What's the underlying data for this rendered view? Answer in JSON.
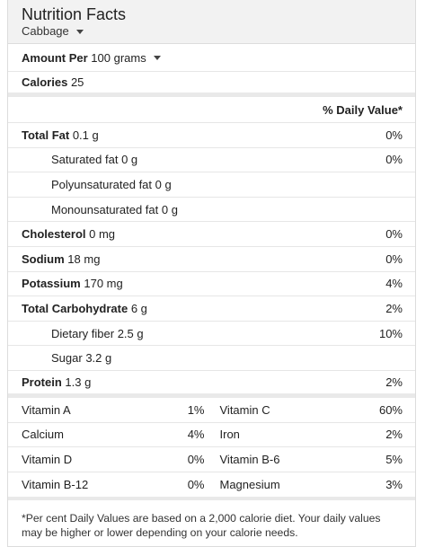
{
  "header": {
    "title": "Nutrition Facts",
    "food": "Cabbage"
  },
  "serving": {
    "amount_label": "Amount Per",
    "amount_value": "100 grams"
  },
  "calories": {
    "label": "Calories",
    "value": "25"
  },
  "dv_header": "% Daily Value*",
  "nutrients": [
    {
      "label": "Total Fat",
      "amount": "0.1 g",
      "dv": "0%"
    },
    {
      "label": "Saturated fat",
      "amount": "0 g",
      "dv": "0%"
    },
    {
      "label": "Polyunsaturated fat",
      "amount": "0 g",
      "dv": ""
    },
    {
      "label": "Monounsaturated fat",
      "amount": "0 g",
      "dv": ""
    },
    {
      "label": "Cholesterol",
      "amount": "0 mg",
      "dv": "0%"
    },
    {
      "label": "Sodium",
      "amount": "18 mg",
      "dv": "0%"
    },
    {
      "label": "Potassium",
      "amount": "170 mg",
      "dv": "4%"
    },
    {
      "label": "Total Carbohydrate",
      "amount": "6 g",
      "dv": "2%"
    },
    {
      "label": "Dietary fiber",
      "amount": "2.5 g",
      "dv": "10%"
    },
    {
      "label": "Sugar",
      "amount": "3.2 g",
      "dv": ""
    },
    {
      "label": "Protein",
      "amount": "1.3 g",
      "dv": "2%"
    }
  ],
  "vitamins": [
    {
      "left_name": "Vitamin A",
      "left_pct": "1%",
      "right_name": "Vitamin C",
      "right_pct": "60%"
    },
    {
      "left_name": "Calcium",
      "left_pct": "4%",
      "right_name": "Iron",
      "right_pct": "2%"
    },
    {
      "left_name": "Vitamin D",
      "left_pct": "0%",
      "right_name": "Vitamin B-6",
      "right_pct": "5%"
    },
    {
      "left_name": "Vitamin B-12",
      "left_pct": "0%",
      "right_name": "Magnesium",
      "right_pct": "3%"
    }
  ],
  "footnote": "*Per cent Daily Values are based on a 2,000 calorie diet. Your daily values may be higher or lower depending on your calorie needs."
}
